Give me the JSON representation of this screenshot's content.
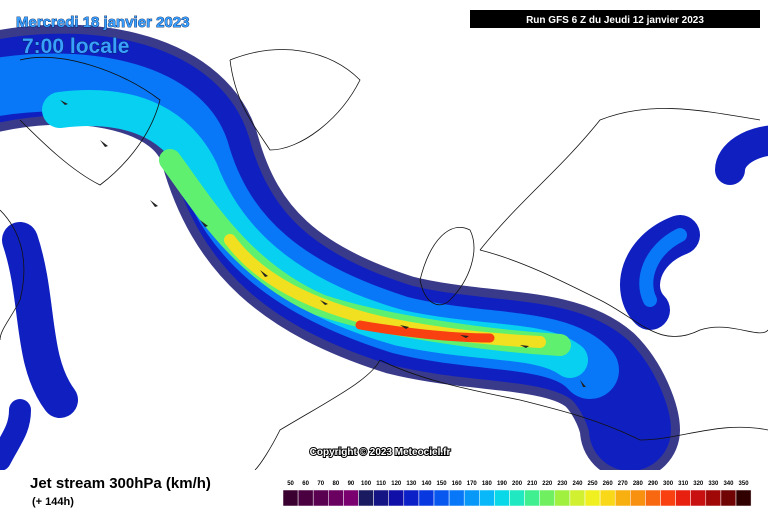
{
  "header": {
    "date": "Mercredi 18 janvier 2023",
    "time": "7:00 locale",
    "run": "Run GFS 6 Z du Jeudi 12 janvier 2023"
  },
  "map": {
    "copyright": "Copyright © 2023 Meteociel.fr"
  },
  "legend": {
    "title": "Jet stream 300hPa (km/h)",
    "subtitle": "(+ 144h)",
    "values": [
      50,
      60,
      70,
      80,
      90,
      100,
      110,
      120,
      130,
      140,
      150,
      160,
      170,
      180,
      190,
      200,
      210,
      220,
      230,
      240,
      250,
      260,
      270,
      280,
      290,
      300,
      310,
      320,
      330,
      340,
      350
    ],
    "colors": [
      "#3a0030",
      "#4a0040",
      "#5a0050",
      "#6a0060",
      "#7a0070",
      "#1a1a60",
      "#141484",
      "#1010a8",
      "#0c20c8",
      "#0838e0",
      "#0858f0",
      "#0878f8",
      "#0898f8",
      "#08b8f8",
      "#08d8e8",
      "#20e8c0",
      "#40f090",
      "#70f060",
      "#a0f040",
      "#d0f030",
      "#f0f020",
      "#f8d818",
      "#f8b010",
      "#f89010",
      "#f86810",
      "#f84010",
      "#e82010",
      "#c81010",
      "#a00808",
      "#700404",
      "#300000"
    ]
  }
}
